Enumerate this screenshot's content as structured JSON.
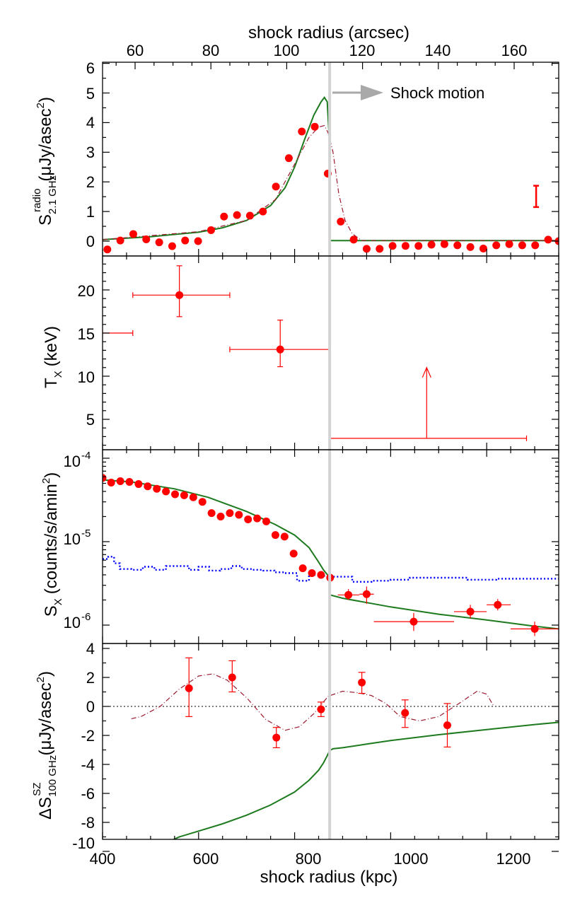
{
  "figure": {
    "top_axis_label": "shock radius (arcsec)",
    "bottom_axis_label": "shock radius (kpc)",
    "top_ticks": [
      "60",
      "80",
      "100",
      "120",
      "140",
      "160"
    ],
    "bottom_ticks": [
      "400",
      "600",
      "800",
      "1000",
      "1200"
    ],
    "shock_position_kpc": 873,
    "colors": {
      "data_points": "#ff0000",
      "model": "#1e7a1e",
      "dashdot_model": "#9b1b30",
      "background": "#0000ff",
      "shock_line": "#d3d3d3",
      "arrow": "#a9a9a9"
    }
  },
  "panels": {
    "radio": {
      "ylabel_main": "S",
      "ylabel_sup": "radio",
      "ylabel_sub": "2.1 GHz",
      "ylabel_units": "(μJy/asec",
      "ylabel_units_sup": "2",
      "ylabel_units_close": ")",
      "yticks": [
        "0",
        "1",
        "2",
        "3",
        "4",
        "5",
        "6"
      ],
      "annotation": "Shock motion"
    },
    "temperature": {
      "ylabel_main": "T",
      "ylabel_sub": "X",
      "ylabel_units": "(keV)",
      "yticks": [
        "5",
        "10",
        "15",
        "20"
      ]
    },
    "xray": {
      "ylabel_main": "S",
      "ylabel_sub": "X",
      "ylabel_units": "(counts/s/amin",
      "ylabel_units_sup": "2",
      "ylabel_units_close": ")",
      "yticks": [
        {
          "base": "10",
          "exp": "-4"
        },
        {
          "base": "10",
          "exp": "-5"
        },
        {
          "base": "10",
          "exp": "-6"
        }
      ]
    },
    "sz": {
      "ylabel_main": "ΔS",
      "ylabel_sup": "SZ",
      "ylabel_sub": "100 GHz",
      "ylabel_units": "(μJy/asec",
      "ylabel_units_sup": "2",
      "ylabel_units_close": ")",
      "yticks": [
        "4",
        "2",
        "0",
        "-2",
        "-4",
        "-6",
        "-8",
        "-10"
      ]
    }
  },
  "chart_data": [
    {
      "type": "scatter",
      "panel": "radio",
      "xlim": [
        400,
        1350
      ],
      "ylim": [
        -0.3,
        6.2
      ],
      "top_axis_arcsec_ticks": [
        60,
        80,
        100,
        120,
        140,
        160
      ],
      "points_x": [
        410,
        437,
        464,
        491,
        518,
        545,
        572,
        599,
        626,
        653,
        680,
        707,
        734,
        761,
        788,
        815,
        842,
        869,
        896,
        923,
        950,
        977,
        1004,
        1031,
        1058,
        1085,
        1112,
        1139,
        1166,
        1193,
        1220,
        1247,
        1274,
        1301,
        1328,
        1350
      ],
      "points_y": [
        -0.28,
        0.02,
        0.24,
        0.06,
        -0.04,
        -0.17,
        0.02,
        0.0,
        0.37,
        0.83,
        0.88,
        0.86,
        1.0,
        1.84,
        2.8,
        3.7,
        3.86,
        2.28,
        0.66,
        0.05,
        -0.26,
        -0.26,
        -0.16,
        -0.16,
        -0.16,
        -0.12,
        -0.1,
        -0.14,
        -0.2,
        -0.25,
        -0.14,
        -0.1,
        -0.14,
        -0.14,
        0.05,
        0.0
      ],
      "model_x": [
        400,
        500,
        600,
        650,
        700,
        750,
        780,
        800,
        820,
        840,
        855,
        862,
        868,
        872,
        873,
        900,
        1350
      ],
      "model_y": [
        0.05,
        0.15,
        0.3,
        0.45,
        0.7,
        1.2,
        1.8,
        2.5,
        3.4,
        4.25,
        4.7,
        4.85,
        4.7,
        3.5,
        0.02,
        0.02,
        0.02
      ],
      "dashdot_x": [
        400,
        600,
        700,
        760,
        800,
        830,
        850,
        862,
        870,
        880,
        892,
        905,
        920,
        940,
        1350
      ],
      "dashdot_y": [
        0.05,
        0.32,
        0.7,
        1.4,
        2.6,
        3.5,
        3.85,
        3.9,
        3.65,
        3.0,
        1.6,
        0.7,
        0.25,
        0.02,
        0.02
      ],
      "error_bar_example": {
        "x": 1303,
        "y_low": 1.15,
        "y_high": 1.87
      }
    },
    {
      "type": "scatter",
      "panel": "temperature",
      "xlim": [
        400,
        1350
      ],
      "ylim": [
        1,
        24
      ],
      "points": [
        {
          "x": 560,
          "y": 19.4,
          "x_low": 463,
          "x_high": 665,
          "y_low": 16.9,
          "y_high": 22.8
        },
        {
          "x": 770,
          "y": 13.1,
          "x_low": 665,
          "x_high": 872,
          "y_low": 11.1,
          "y_high": 16.5
        }
      ],
      "limits": [
        {
          "x_low": 400,
          "x_high": 463,
          "y": 15,
          "marker": false
        },
        {
          "x_low": 872,
          "x_high": 1283,
          "x_center": 1075,
          "y": 2.8,
          "arrow_to": 11,
          "direction": "lower_limit"
        }
      ]
    },
    {
      "type": "scatter",
      "panel": "xray",
      "yscale": "log",
      "xlim": [
        400,
        1350
      ],
      "ylim": [
        7.4e-07,
        0.0001
      ],
      "points_x": [
        400,
        418,
        437,
        456,
        475,
        494,
        513,
        532,
        551,
        570,
        589,
        608,
        627,
        646,
        665,
        684,
        703,
        722,
        741,
        760,
        779,
        798,
        817,
        836,
        855,
        874
      ],
      "points_y": [
        5.8e-05,
        5.1e-05,
        5.3e-05,
        5.2e-05,
        4.9e-05,
        4.6e-05,
        4.3e-05,
        4e-05,
        3.7e-05,
        3.6e-05,
        3.4e-05,
        3e-05,
        2.2e-05,
        2e-05,
        2.2e-05,
        2.1e-05,
        1.85e-05,
        1.9e-05,
        1.75e-05,
        1.2e-05,
        1.15e-05,
        7.2e-06,
        4.8e-06,
        4.2e-06,
        4e-06,
        3.7e-06
      ],
      "points_with_errors": [
        {
          "x": 912,
          "y": 2.3e-06,
          "x_low": 890,
          "x_high": 935,
          "y_low": 2e-06,
          "y_high": 2.7e-06
        },
        {
          "x": 950,
          "y": 2.35e-06,
          "x_low": 935,
          "x_high": 965,
          "y_low": 1.8e-06,
          "y_high": 2.9e-06
        },
        {
          "x": 1048,
          "y": 1.1e-06,
          "x_low": 965,
          "x_high": 1132,
          "y_low": 8.5e-07,
          "y_high": 1.4e-06
        },
        {
          "x": 1166,
          "y": 1.45e-06,
          "x_low": 1132,
          "x_high": 1200,
          "y_low": 1.2e-06,
          "y_high": 1.75e-06
        },
        {
          "x": 1223,
          "y": 1.75e-06,
          "x_low": 1200,
          "x_high": 1250,
          "y_low": 1.5e-06,
          "y_high": 2.05e-06
        },
        {
          "x": 1300,
          "y": 9e-07,
          "x_low": 1250,
          "x_high": 1350,
          "y_low": 7.4e-07,
          "y_high": 1.1e-06
        }
      ],
      "model_x": [
        400,
        460,
        550,
        620,
        700,
        760,
        800,
        830,
        850,
        860,
        870,
        873,
        874,
        900,
        1000,
        1100,
        1200,
        1300,
        1350
      ],
      "model_y": [
        5.5e-05,
        5.2e-05,
        4.3e-05,
        3.4e-05,
        2.3e-05,
        1.6e-05,
        1.2e-05,
        8.5e-06,
        5.7e-06,
        4.6e-06,
        3.9e-06,
        3e-06,
        2.3e-06,
        2.1e-06,
        1.65e-06,
        1.35e-06,
        1.15e-06,
        9.7e-07,
        9e-07
      ],
      "background_step_x": [
        400,
        412,
        424,
        436,
        460,
        484,
        508,
        532,
        556,
        580,
        600,
        622,
        645,
        668,
        690,
        712,
        735,
        758,
        780,
        805,
        830,
        852,
        880,
        920,
        960,
        1000,
        1040,
        1100,
        1160,
        1220,
        1280,
        1350
      ],
      "background_step_y": [
        6.2e-06,
        6.6e-06,
        5.5e-06,
        4.7e-06,
        4.6e-06,
        5e-06,
        4.6e-06,
        5.1e-06,
        5.1e-06,
        4.6e-06,
        5e-06,
        4.5e-06,
        4.7e-06,
        5.1e-06,
        4.7e-06,
        4.6e-06,
        4.5e-06,
        4.3e-06,
        4.2e-06,
        3.4e-06,
        4e-06,
        3.9e-06,
        3.8e-06,
        3.3e-06,
        3.4e-06,
        3.5e-06,
        3.7e-06,
        3.7e-06,
        3.5e-06,
        3.6e-06,
        3.6e-06,
        3.6e-06
      ]
    },
    {
      "type": "scatter",
      "panel": "sz",
      "xlim": [
        400,
        1350
      ],
      "ylim": [
        -10.5,
        4.5
      ],
      "points": [
        {
          "x": 580,
          "y": 1.25,
          "y_low": -0.7,
          "y_high": 3.35
        },
        {
          "x": 670,
          "y": 2.0,
          "y_low": 1.0,
          "y_high": 3.15
        },
        {
          "x": 762,
          "y": -2.15,
          "y_low": -2.85,
          "y_high": -1.45
        },
        {
          "x": 855,
          "y": -0.2,
          "y_low": -0.7,
          "y_high": 0.3
        },
        {
          "x": 940,
          "y": 1.65,
          "y_low": 0.9,
          "y_high": 2.35
        },
        {
          "x": 1030,
          "y": -0.45,
          "y_low": -1.45,
          "y_high": 0.45
        },
        {
          "x": 1118,
          "y": -1.3,
          "y_low": -2.8,
          "y_high": 0.2
        }
      ],
      "zero_line": 0,
      "model_x": [
        480,
        520,
        560,
        600,
        650,
        700,
        750,
        800,
        830,
        850,
        860,
        868,
        873,
        880,
        900,
        950,
        1000,
        1100,
        1200,
        1300,
        1350
      ],
      "model_y": [
        -10.5,
        -9.6,
        -9.0,
        -8.6,
        -8.1,
        -7.5,
        -6.8,
        -5.9,
        -5.1,
        -4.4,
        -3.9,
        -3.4,
        -3.05,
        -2.92,
        -2.85,
        -2.6,
        -2.35,
        -1.95,
        -1.6,
        -1.25,
        -1.1
      ],
      "dashdot_x": [
        460,
        480,
        520,
        560,
        600,
        630,
        660,
        700,
        740,
        780,
        810,
        840,
        870,
        900,
        930,
        960,
        990,
        1020,
        1060,
        1100,
        1140,
        1180,
        1200,
        1215
      ],
      "dashdot_y": [
        -0.85,
        -0.7,
        0.0,
        1.2,
        2.1,
        2.25,
        1.8,
        0.6,
        -0.9,
        -1.65,
        -1.4,
        -0.5,
        0.7,
        1.05,
        0.95,
        0.75,
        0.2,
        -0.7,
        -1.0,
        -0.7,
        0.15,
        1.05,
        0.85,
        0.0
      ]
    }
  ]
}
